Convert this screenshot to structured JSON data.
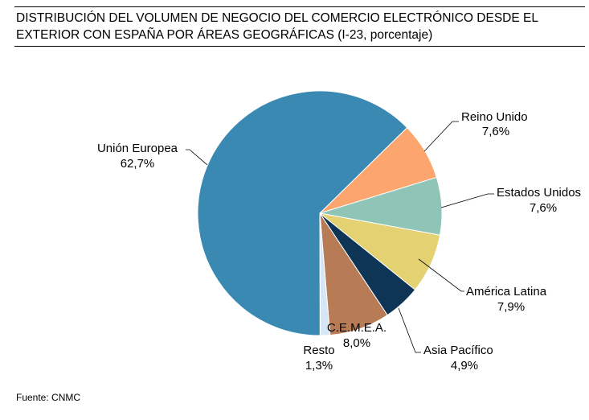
{
  "title_line1": "DISTRIBUCIÓN DEL VOLUMEN DE NEGOCIO DEL COMERCIO ELECTRÓNICO DESDE EL",
  "title_line2": "EXTERIOR CON ESPAÑA POR ÁREAS GEOGRÁFICAS (I-23, porcentaje)",
  "source": "Fuente: CNMC",
  "chart_data": {
    "type": "pie",
    "title": "DISTRIBUCIÓN DEL VOLUMEN DE NEGOCIO DEL COMERCIO ELECTRÓNICO DESDE EL EXTERIOR CON ESPAÑA POR ÁREAS GEOGRÁFICAS (I-23, porcentaje)",
    "slices": [
      {
        "name": "Reino Unido",
        "value": 7.6,
        "label": "7,6%",
        "color": "#FCA56E"
      },
      {
        "name": "Estados Unidos",
        "value": 7.6,
        "label": "7,6%",
        "color": "#8FC5B7"
      },
      {
        "name": "América Latina",
        "value": 7.9,
        "label": "7,9%",
        "color": "#E3D172"
      },
      {
        "name": "Asia Pacífico",
        "value": 4.9,
        "label": "4,9%",
        "color": "#0F3556"
      },
      {
        "name": "C.E.M.E.A.",
        "value": 8.0,
        "label": "8,0%",
        "color": "#B77B55"
      },
      {
        "name": "Resto",
        "value": 1.3,
        "label": "1,3%",
        "color": "#D6E6F4"
      },
      {
        "name": "Unión Europea",
        "value": 62.7,
        "label": "62,7%",
        "color": "#3A89B2"
      }
    ]
  }
}
